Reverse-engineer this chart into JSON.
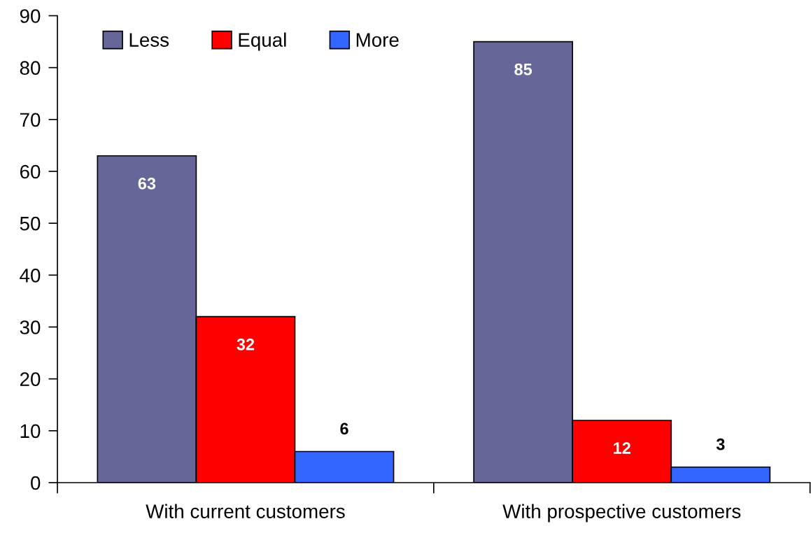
{
  "chart_data": {
    "type": "bar",
    "categories": [
      "With current customers",
      "With prospective customers"
    ],
    "series": [
      {
        "name": "Less",
        "color": "#666699",
        "values": [
          63,
          85
        ]
      },
      {
        "name": "Equal",
        "color": "#ff0000",
        "values": [
          32,
          12
        ]
      },
      {
        "name": "More",
        "color": "#3366ff",
        "values": [
          6,
          3
        ]
      }
    ],
    "ylim": [
      0,
      90
    ],
    "yticks": [
      0,
      10,
      20,
      30,
      40,
      50,
      60,
      70,
      80,
      90
    ],
    "data_labels": true,
    "grid": false,
    "legend": "top left"
  }
}
